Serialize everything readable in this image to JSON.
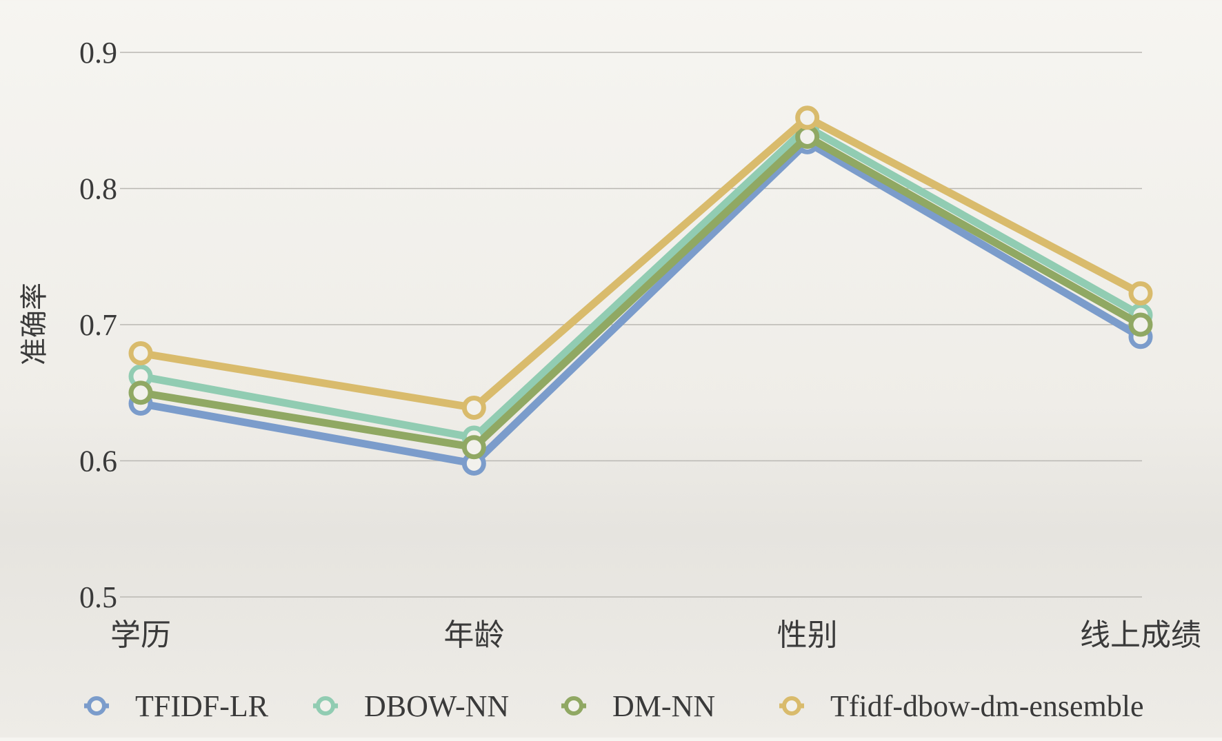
{
  "chart_data": {
    "type": "line",
    "title": "",
    "xlabel": "",
    "ylabel": "准确率",
    "categories": [
      "学历",
      "年龄",
      "性别",
      "线上成绩"
    ],
    "ylim": [
      0.5,
      0.9
    ],
    "yticks": [
      "0.5",
      "0.6",
      "0.7",
      "0.8",
      "0.9"
    ],
    "grid": true,
    "legend_position": "bottom",
    "series": [
      {
        "name": "TFIDF-LR",
        "color": "#7b9ccb",
        "values": [
          0.642,
          0.598,
          0.834,
          0.691
        ]
      },
      {
        "name": "DBOW-NN",
        "color": "#91ccb2",
        "values": [
          0.662,
          0.617,
          0.845,
          0.707
        ]
      },
      {
        "name": "DM-NN",
        "color": "#90a863",
        "values": [
          0.65,
          0.61,
          0.838,
          0.7
        ]
      },
      {
        "name": "Tfidf-dbow-dm-ensemble",
        "color": "#d9bb6c",
        "values": [
          0.679,
          0.639,
          0.852,
          0.723
        ]
      }
    ]
  }
}
